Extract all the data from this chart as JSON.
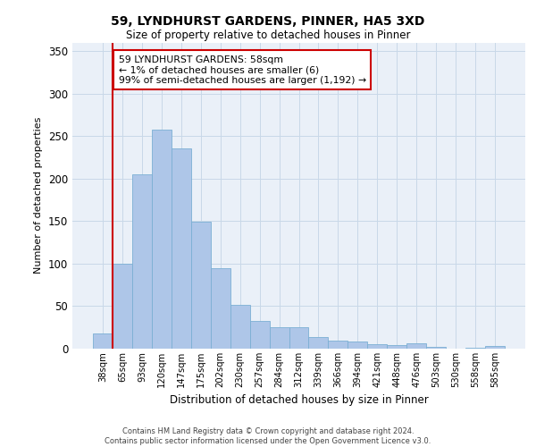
{
  "title1": "59, LYNDHURST GARDENS, PINNER, HA5 3XD",
  "title2": "Size of property relative to detached houses in Pinner",
  "xlabel": "Distribution of detached houses by size in Pinner",
  "ylabel": "Number of detached properties",
  "categories": [
    "38sqm",
    "65sqm",
    "93sqm",
    "120sqm",
    "147sqm",
    "175sqm",
    "202sqm",
    "230sqm",
    "257sqm",
    "284sqm",
    "312sqm",
    "339sqm",
    "366sqm",
    "394sqm",
    "421sqm",
    "448sqm",
    "476sqm",
    "503sqm",
    "530sqm",
    "558sqm",
    "585sqm"
  ],
  "values": [
    18,
    100,
    205,
    257,
    235,
    149,
    95,
    52,
    33,
    25,
    25,
    14,
    9,
    8,
    5,
    4,
    6,
    2,
    0,
    1,
    3
  ],
  "bar_color": "#aec6e8",
  "bar_edge_color": "#7bafd4",
  "vline_color": "#cc0000",
  "annotation_text": "59 LYNDHURST GARDENS: 58sqm\n← 1% of detached houses are smaller (6)\n99% of semi-detached houses are larger (1,192) →",
  "annotation_box_color": "#ffffff",
  "annotation_box_edge": "#cc0000",
  "ylim": [
    0,
    360
  ],
  "yticks": [
    0,
    50,
    100,
    150,
    200,
    250,
    300,
    350
  ],
  "grid_color": "#c8d8e8",
  "background_color": "#eaf0f8",
  "footer_line1": "Contains HM Land Registry data © Crown copyright and database right 2024.",
  "footer_line2": "Contains public sector information licensed under the Open Government Licence v3.0."
}
